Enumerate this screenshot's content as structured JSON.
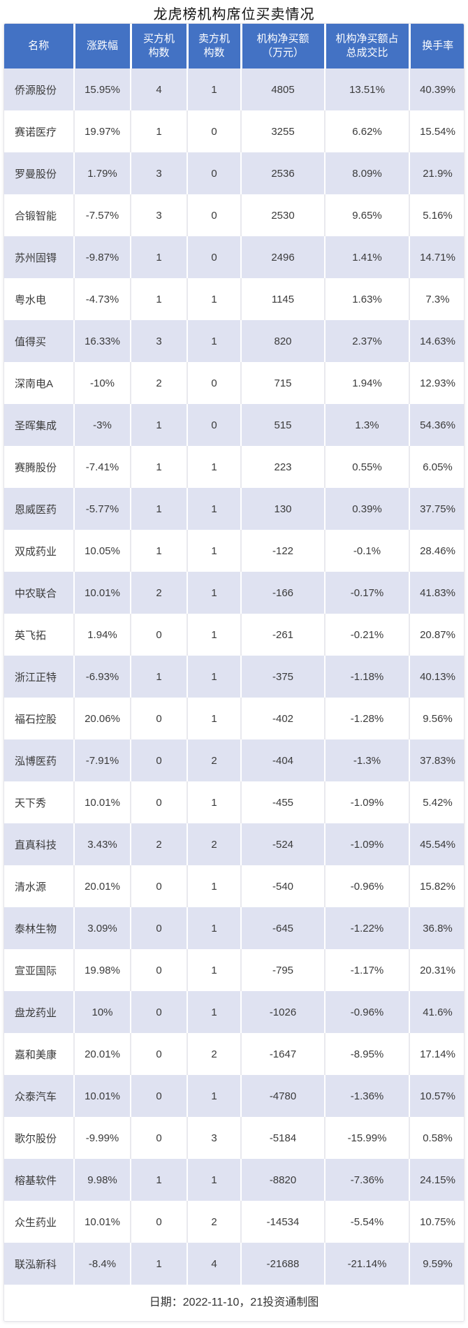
{
  "page_title": "龙虎榜机构席位买卖情况",
  "footer_note": "日期：2022-11-10，21投资通制图",
  "colors": {
    "header_bg": "#4372c4",
    "header_text": "#ffffff",
    "row_alt_bg": "#dfe2f1",
    "row_bg": "#ffffff",
    "body_text": "#3a3a3a"
  },
  "chart_data": {
    "type": "table",
    "title": "龙虎榜机构席位买卖情况",
    "columns": [
      "名称",
      "涨跌幅",
      "买方机构数",
      "卖方机构数",
      "机构净买额（万元）",
      "机构净买额占总成交比",
      "换手率"
    ],
    "column_labels_wrapped": [
      "名称",
      "涨跌幅",
      "买方机\n构数",
      "卖方机\n构数",
      "机构净买额\n（万元）",
      "机构净买额占\n总成交比",
      "换手率"
    ],
    "rows": [
      [
        "侨源股份",
        "15.95%",
        "4",
        "1",
        "4805",
        "13.51%",
        "40.39%"
      ],
      [
        "赛诺医疗",
        "19.97%",
        "1",
        "0",
        "3255",
        "6.62%",
        "15.54%"
      ],
      [
        "罗曼股份",
        "1.79%",
        "3",
        "0",
        "2536",
        "8.09%",
        "21.9%"
      ],
      [
        "合锻智能",
        "-7.57%",
        "3",
        "0",
        "2530",
        "9.65%",
        "5.16%"
      ],
      [
        "苏州固锝",
        "-9.87%",
        "1",
        "0",
        "2496",
        "1.41%",
        "14.71%"
      ],
      [
        "粤水电",
        "-4.73%",
        "1",
        "1",
        "1145",
        "1.63%",
        "7.3%"
      ],
      [
        "值得买",
        "16.33%",
        "3",
        "1",
        "820",
        "2.37%",
        "14.63%"
      ],
      [
        "深南电A",
        "-10%",
        "2",
        "0",
        "715",
        "1.94%",
        "12.93%"
      ],
      [
        "圣晖集成",
        "-3%",
        "1",
        "0",
        "515",
        "1.3%",
        "54.36%"
      ],
      [
        "赛腾股份",
        "-7.41%",
        "1",
        "1",
        "223",
        "0.55%",
        "6.05%"
      ],
      [
        "恩威医药",
        "-5.77%",
        "1",
        "1",
        "130",
        "0.39%",
        "37.75%"
      ],
      [
        "双成药业",
        "10.05%",
        "1",
        "1",
        "-122",
        "-0.1%",
        "28.46%"
      ],
      [
        "中农联合",
        "10.01%",
        "2",
        "1",
        "-166",
        "-0.17%",
        "41.83%"
      ],
      [
        "英飞拓",
        "1.94%",
        "0",
        "1",
        "-261",
        "-0.21%",
        "20.87%"
      ],
      [
        "浙江正特",
        "-6.93%",
        "1",
        "1",
        "-375",
        "-1.18%",
        "40.13%"
      ],
      [
        "福石控股",
        "20.06%",
        "0",
        "1",
        "-402",
        "-1.28%",
        "9.56%"
      ],
      [
        "泓博医药",
        "-7.91%",
        "0",
        "2",
        "-404",
        "-1.3%",
        "37.83%"
      ],
      [
        "天下秀",
        "10.01%",
        "0",
        "1",
        "-455",
        "-1.09%",
        "5.42%"
      ],
      [
        "直真科技",
        "3.43%",
        "2",
        "2",
        "-524",
        "-1.09%",
        "45.54%"
      ],
      [
        "清水源",
        "20.01%",
        "0",
        "1",
        "-540",
        "-0.96%",
        "15.82%"
      ],
      [
        "泰林生物",
        "3.09%",
        "0",
        "1",
        "-645",
        "-1.22%",
        "36.8%"
      ],
      [
        "宣亚国际",
        "19.98%",
        "0",
        "1",
        "-795",
        "-1.17%",
        "20.31%"
      ],
      [
        "盘龙药业",
        "10%",
        "0",
        "1",
        "-1026",
        "-0.96%",
        "41.6%"
      ],
      [
        "嘉和美康",
        "20.01%",
        "0",
        "2",
        "-1647",
        "-8.95%",
        "17.14%"
      ],
      [
        "众泰汽车",
        "10.01%",
        "0",
        "1",
        "-4780",
        "-1.36%",
        "10.57%"
      ],
      [
        "歌尔股份",
        "-9.99%",
        "0",
        "3",
        "-5184",
        "-15.99%",
        "0.58%"
      ],
      [
        "榕基软件",
        "9.98%",
        "1",
        "1",
        "-8820",
        "-7.36%",
        "24.15%"
      ],
      [
        "众生药业",
        "10.01%",
        "0",
        "2",
        "-14534",
        "-5.54%",
        "10.75%"
      ],
      [
        "联泓新科",
        "-8.4%",
        "1",
        "4",
        "-21688",
        "-21.14%",
        "9.59%"
      ]
    ]
  }
}
